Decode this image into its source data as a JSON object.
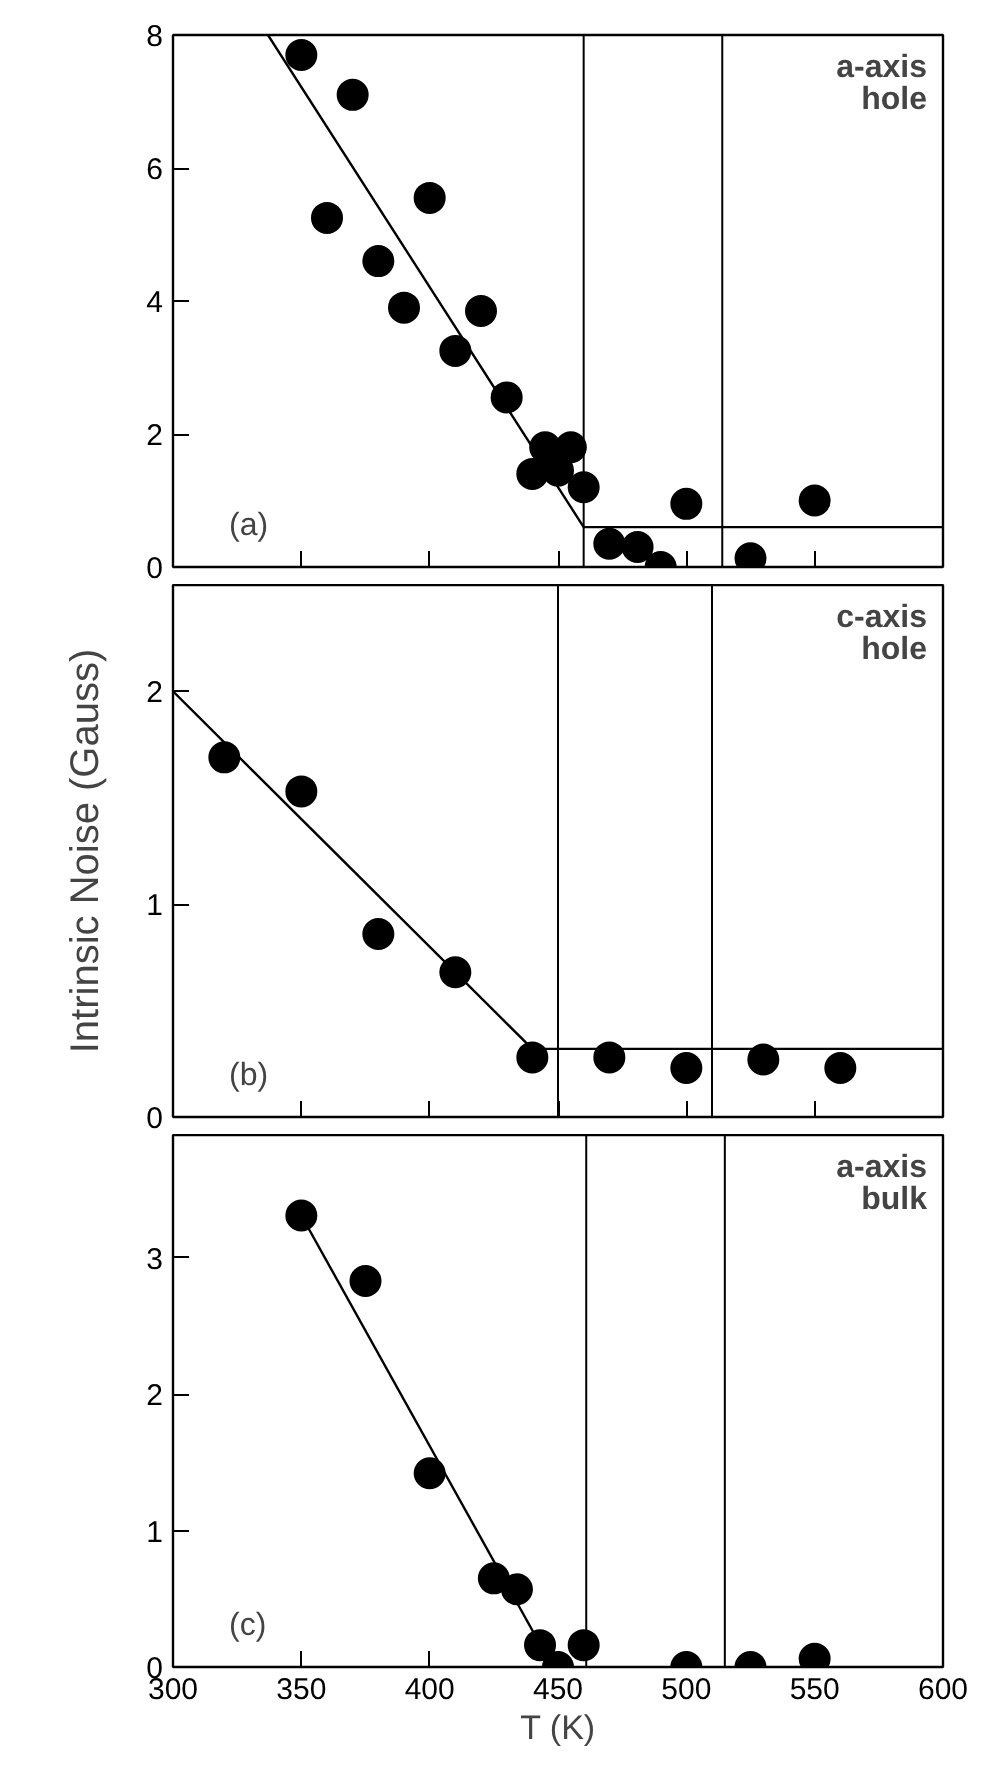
{
  "chart_data": [
    {
      "type": "scatter",
      "xlim": [
        300,
        600
      ],
      "xticks": [
        300,
        350,
        400,
        450,
        500,
        550,
        600
      ],
      "ylim": [
        0,
        8
      ],
      "yticks": [
        0,
        2,
        4,
        6,
        8
      ],
      "tick_labels": "y",
      "annotations": [
        "a-axis\nhole",
        "(a)"
      ],
      "ref_lines": [
        {
          "axis": "x",
          "value": 460,
          "color": "#000000"
        },
        {
          "axis": "x",
          "value": 514,
          "color": "#000000"
        }
      ],
      "series": [
        {
          "marker": "circle",
          "color": "#000000",
          "x": [
            350,
            370,
            360,
            380,
            390,
            400,
            410,
            420,
            430,
            440,
            445,
            450,
            455,
            460,
            470,
            481,
            490,
            500,
            525,
            550
          ],
          "values": [
            7.7,
            7.1,
            5.25,
            4.6,
            3.9,
            5.55,
            3.25,
            3.85,
            2.55,
            1.4,
            1.8,
            1.45,
            1.8,
            1.2,
            0.35,
            0.3,
            0.0,
            0.95,
            0.13,
            1.0
          ]
        },
        {
          "type": "line",
          "color": "#000000",
          "x": [
            337,
            460,
            600
          ],
          "values": [
            8,
            0.6,
            0.6
          ]
        }
      ]
    },
    {
      "type": "scatter",
      "xlim": [
        300,
        600
      ],
      "xticks": [
        300,
        350,
        400,
        450,
        500,
        550,
        600
      ],
      "ylim": [
        0,
        2.5
      ],
      "yticks": [
        0,
        1,
        2
      ],
      "tick_labels": "y",
      "ylabel": "Intrinsic Noise (Gauss)",
      "annotations": [
        "c-axis\nhole",
        "(b)"
      ],
      "ref_lines": [
        {
          "axis": "x",
          "value": 450,
          "color": "#000000"
        },
        {
          "axis": "x",
          "value": 510,
          "color": "#000000"
        }
      ],
      "series": [
        {
          "marker": "circle",
          "color": "#000000",
          "x": [
            320,
            350,
            380,
            410,
            440,
            470,
            500,
            530,
            560
          ],
          "values": [
            1.69,
            1.53,
            0.86,
            0.68,
            0.28,
            0.28,
            0.23,
            0.27,
            0.23
          ]
        },
        {
          "type": "line",
          "color": "#000000",
          "x": [
            300,
            440,
            600
          ],
          "values": [
            2.0,
            0.32,
            0.32
          ]
        }
      ]
    },
    {
      "type": "scatter",
      "xlim": [
        300,
        600
      ],
      "xticks": [
        300,
        350,
        400,
        450,
        500,
        550,
        600
      ],
      "ylim": [
        0,
        3.9
      ],
      "yticks": [
        0,
        1,
        2,
        3
      ],
      "xlabel": "T (K)",
      "annotations": [
        "a-axis\nbulk",
        "(c)"
      ],
      "ref_lines": [
        {
          "axis": "x",
          "value": 461,
          "color": "#000000"
        },
        {
          "axis": "x",
          "value": 515,
          "color": "#000000"
        }
      ],
      "series": [
        {
          "marker": "circle",
          "color": "#000000",
          "x": [
            350,
            375,
            400,
            425,
            434,
            443,
            450,
            460,
            500,
            525,
            550
          ],
          "values": [
            3.31,
            2.83,
            1.42,
            0.65,
            0.57,
            0.16,
            0.0,
            0.16,
            0.0,
            0.0,
            0.06
          ]
        },
        {
          "type": "line",
          "color": "#000000",
          "x": [
            350,
            445
          ],
          "values": [
            3.31,
            0.1
          ]
        }
      ]
    }
  ]
}
